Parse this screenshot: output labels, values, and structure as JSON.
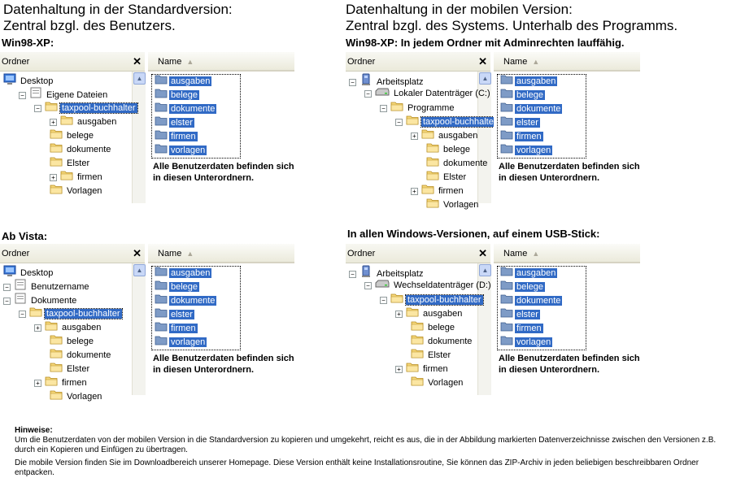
{
  "standard": {
    "title": "Datenhaltung in der Standardversion:",
    "subtitle": "Zentral bzgl. des Benutzers.",
    "win98_label": "Win98-XP:",
    "vista_label": "Ab Vista:"
  },
  "mobile": {
    "title": "Datenhaltung in der mobilen Version:",
    "subtitle": "Zentral bzgl. des Systems. Unterhalb des Programms.",
    "win98_label_bold": "Win98-XP:",
    "win98_label_rest": " In jedem Ordner mit Adminrechten lauffähig.",
    "usb_label": "In allen Windows-Versionen, auf einem USB-Stick:"
  },
  "pane": {
    "tree_header": "Ordner",
    "close": "✕",
    "list_header": "Name",
    "sort_arrow": "▲",
    "scroll_arrow": "▲"
  },
  "note": "Alle Benutzerdaten befinden sich in diesen Unterordnern.",
  "list_items": [
    "ausgaben",
    "belege",
    "dokumente",
    "elster",
    "firmen",
    "vorlagen"
  ],
  "trees": {
    "std_xp": [
      {
        "label": "Desktop",
        "icon": "desktop"
      },
      {
        "label": "Eigene Dateien",
        "icon": "documents"
      },
      {
        "label": "taxpool-buchhalter",
        "icon": "folder"
      },
      {
        "label": "ausgaben",
        "icon": "folder"
      },
      {
        "label": "belege",
        "icon": "folder"
      },
      {
        "label": "dokumente",
        "icon": "folder"
      },
      {
        "label": "Elster",
        "icon": "folder"
      },
      {
        "label": "firmen",
        "icon": "folder"
      },
      {
        "label": "Vorlagen",
        "icon": "folder"
      }
    ],
    "std_vista": [
      {
        "label": "Desktop",
        "icon": "desktop"
      },
      {
        "label": "Benutzername",
        "icon": "documents"
      },
      {
        "label": "Dokumente",
        "icon": "documents"
      },
      {
        "label": "taxpool-buchhalter",
        "icon": "folder"
      },
      {
        "label": "ausgaben",
        "icon": "folder"
      },
      {
        "label": "belege",
        "icon": "folder"
      },
      {
        "label": "dokumente",
        "icon": "folder"
      },
      {
        "label": "Elster",
        "icon": "folder"
      },
      {
        "label": "firmen",
        "icon": "folder"
      },
      {
        "label": "Vorlagen",
        "icon": "folder"
      }
    ],
    "mob_xp": [
      {
        "label": "Arbeitsplatz",
        "icon": "computer"
      },
      {
        "label": "Lokaler Datenträger (C:)",
        "icon": "drive"
      },
      {
        "label": "Programme",
        "icon": "folder"
      },
      {
        "label": "taxpool-buchhalter",
        "icon": "folder"
      },
      {
        "label": "ausgaben",
        "icon": "folder"
      },
      {
        "label": "belege",
        "icon": "folder"
      },
      {
        "label": "dokumente",
        "icon": "folder"
      },
      {
        "label": "Elster",
        "icon": "folder"
      },
      {
        "label": "firmen",
        "icon": "folder"
      },
      {
        "label": "Vorlagen",
        "icon": "folder"
      }
    ],
    "mob_usb": [
      {
        "label": "Arbeitsplatz",
        "icon": "computer"
      },
      {
        "label": "Wechseldatenträger (D:)",
        "icon": "drive"
      },
      {
        "label": "taxpool-buchhalter",
        "icon": "folder"
      },
      {
        "label": "ausgaben",
        "icon": "folder"
      },
      {
        "label": "belege",
        "icon": "folder"
      },
      {
        "label": "dokumente",
        "icon": "folder"
      },
      {
        "label": "Elster",
        "icon": "folder"
      },
      {
        "label": "firmen",
        "icon": "folder"
      },
      {
        "label": "Vorlagen",
        "icon": "folder"
      }
    ]
  },
  "hinweise": {
    "title": "Hinweise:",
    "p1": "Um die  Benutzerdaten  von der mobilen Version in die Standardversion zu kopieren und umgekehrt, reicht es aus, die in der Abbildung markierten Datenverzeichnisse zwischen den Versionen z.B. durch ein Kopieren und Einfügen zu übertragen.",
    "p2": "Die mobile Version finden Sie im Downloadbereich unserer Homepage. Diese Version enthält keine Installationsroutine, Sie können das ZIP-Archiv in jeden beliebigen beschreibbaren Ordner entpacken."
  },
  "colors": {
    "selection": "#316ac5",
    "folder": "#f5d77a"
  }
}
